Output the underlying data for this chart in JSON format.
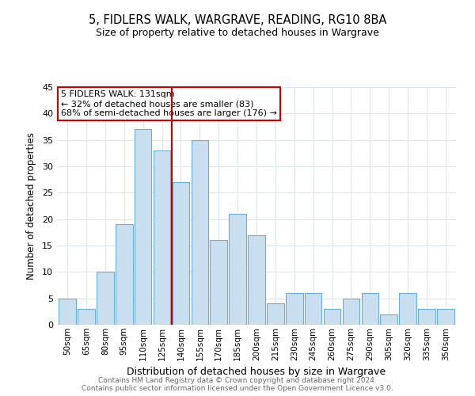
{
  "title": "5, FIDLERS WALK, WARGRAVE, READING, RG10 8BA",
  "subtitle": "Size of property relative to detached houses in Wargrave",
  "xlabel": "Distribution of detached houses by size in Wargrave",
  "ylabel": "Number of detached properties",
  "bar_labels": [
    "50sqm",
    "65sqm",
    "80sqm",
    "95sqm",
    "110sqm",
    "125sqm",
    "140sqm",
    "155sqm",
    "170sqm",
    "185sqm",
    "200sqm",
    "215sqm",
    "230sqm",
    "245sqm",
    "260sqm",
    "275sqm",
    "290sqm",
    "305sqm",
    "320sqm",
    "335sqm",
    "350sqm"
  ],
  "bar_values": [
    5,
    3,
    10,
    19,
    37,
    33,
    27,
    35,
    16,
    21,
    17,
    4,
    6,
    6,
    3,
    5,
    6,
    2,
    6,
    3,
    3
  ],
  "bar_color": "#c9dff0",
  "bar_edge_color": "#6aaed6",
  "vline_x_index": 5.5,
  "vline_color": "#cc0000",
  "annotation_title": "5 FIDLERS WALK: 131sqm",
  "annotation_line1": "← 32% of detached houses are smaller (83)",
  "annotation_line2": "68% of semi-detached houses are larger (176) →",
  "annotation_box_color": "#ffffff",
  "annotation_box_edge": "#cc0000",
  "ylim": [
    0,
    45
  ],
  "yticks": [
    0,
    5,
    10,
    15,
    20,
    25,
    30,
    35,
    40,
    45
  ],
  "footer_line1": "Contains HM Land Registry data © Crown copyright and database right 2024.",
  "footer_line2": "Contains public sector information licensed under the Open Government Licence v3.0.",
  "bg_color": "#ffffff",
  "grid_color": "#dce6f1"
}
